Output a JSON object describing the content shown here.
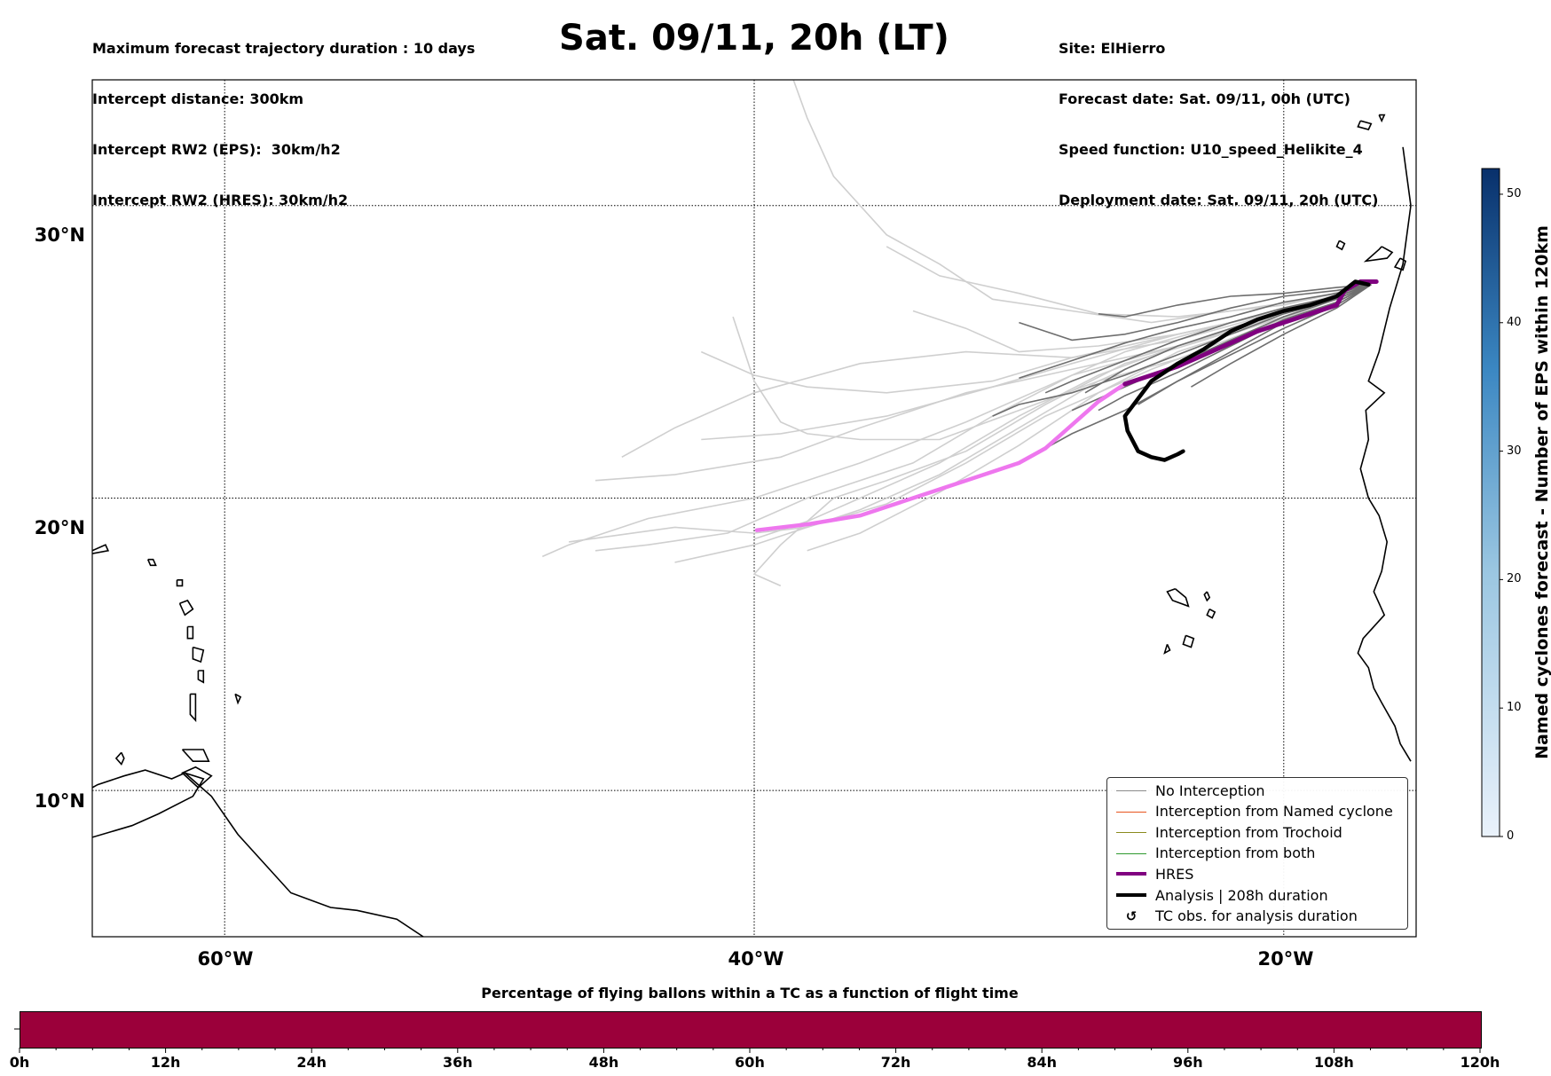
{
  "header": {
    "info_left": [
      "Maximum forecast trajectory duration : 10 days",
      "Intercept distance: 300km",
      "Intercept RW2 (EPS):  30km/h2",
      "Intercept RW2 (HRES): 30km/h2"
    ],
    "title": "Sat. 09/11, 20h (LT)",
    "info_right": [
      "Site: ElHierro",
      "Forecast date: Sat. 09/11, 00h (UTC)",
      "Speed function: U10_speed_Helikite_4",
      "Deployment date: Sat. 09/11, 20h (UTC)"
    ]
  },
  "map": {
    "lon_range": [
      -65,
      -15
    ],
    "lat_range": [
      5,
      34.3
    ],
    "lat_labels": [
      "30°N",
      "20°N",
      "10°N"
    ],
    "lon_labels": [
      "60°W",
      "40°W",
      "20°W"
    ],
    "gridlines": {
      "lats": [
        30,
        20,
        10
      ],
      "lons": [
        -60,
        -40,
        -20
      ]
    },
    "colors": {
      "eps_light": "#cfcfcf",
      "eps_dark": "#6e6e6e",
      "hres": "#800080",
      "hres_light": "#ee77ee",
      "analysis": "#000000"
    },
    "hres_track": [
      [
        -39.9,
        18.9
      ],
      [
        -38,
        19.1
      ],
      [
        -36,
        19.4
      ],
      [
        -34,
        20
      ],
      [
        -32,
        20.6
      ],
      [
        -30,
        21.2
      ],
      [
        -29,
        21.7
      ],
      [
        -28,
        22.5
      ],
      [
        -27,
        23.3
      ],
      [
        -26,
        23.9
      ],
      [
        -25,
        24.2
      ],
      [
        -24,
        24.5
      ],
      [
        -23,
        24.9
      ],
      [
        -22,
        25.3
      ],
      [
        -21,
        25.7
      ],
      [
        -20,
        26
      ],
      [
        -19,
        26.3
      ],
      [
        -18,
        26.6
      ],
      [
        -17.7,
        27.1
      ],
      [
        -17.1,
        27.4
      ],
      [
        -16.5,
        27.4
      ]
    ],
    "analysis_track": [
      [
        -16.8,
        27.3
      ],
      [
        -17.3,
        27.4
      ],
      [
        -18,
        26.9
      ],
      [
        -19,
        26.6
      ],
      [
        -20,
        26.4
      ],
      [
        -21,
        26.1
      ],
      [
        -22,
        25.7
      ],
      [
        -23,
        25.1
      ],
      [
        -24,
        24.6
      ],
      [
        -25,
        24
      ],
      [
        -25.5,
        23.4
      ],
      [
        -26,
        22.8
      ],
      [
        -25.9,
        22.3
      ],
      [
        -25.5,
        21.6
      ],
      [
        -25,
        21.4
      ],
      [
        -24.5,
        21.3
      ],
      [
        -24,
        21.5
      ],
      [
        -23.8,
        21.6
      ]
    ]
  },
  "legend": {
    "items": [
      {
        "label": "No Interception",
        "color": "#8c8c8c",
        "style": "thin"
      },
      {
        "label": "Interception from Named cyclone",
        "color": "#e8541e",
        "style": "thin"
      },
      {
        "label": "Interception from Trochoid",
        "color": "#8a8a1e",
        "style": "thin"
      },
      {
        "label": "Interception from both",
        "color": "#2e9a2e",
        "style": "thin"
      },
      {
        "label": "HRES",
        "color": "#800080",
        "style": "thick"
      },
      {
        "label": "Analysis | 208h duration",
        "color": "#000000",
        "style": "thick"
      },
      {
        "label": "TC obs. for analysis duration",
        "color": "#000000",
        "style": "symbol",
        "symbol": "↺"
      }
    ]
  },
  "colorbar": {
    "label": "Named cyclones forecast - Number of EPS within 120km",
    "ticks": [
      "0",
      "10",
      "20",
      "30",
      "40",
      "50"
    ],
    "range": [
      0,
      52
    ]
  },
  "bottom_bar": {
    "title": "Percentage of flying ballons within a TC as a function of flight time",
    "ticks": [
      "0h",
      "12h",
      "24h",
      "36h",
      "48h",
      "60h",
      "72h",
      "84h",
      "96h",
      "108h",
      "120h"
    ],
    "color": "#9b003a"
  }
}
